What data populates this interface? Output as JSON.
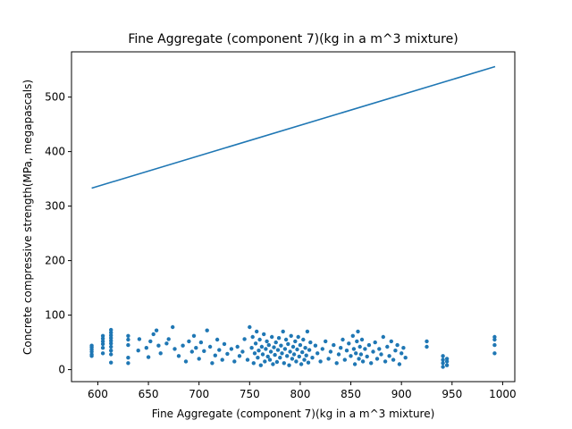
{
  "chart_data": {
    "type": "scatter",
    "title": "Fine Aggregate (component 7)(kg in a m^3 mixture)",
    "xlabel": "Fine Aggregate (component 7)(kg in a m^3 mixture)",
    "ylabel": "Concrete compressive strength(MPa, megapascals)",
    "xlim": [
      574,
      1012
    ],
    "ylim": [
      -22,
      583
    ],
    "xticks": [
      600,
      650,
      700,
      750,
      800,
      850,
      900,
      950,
      1000
    ],
    "yticks": [
      0,
      100,
      200,
      300,
      400,
      500
    ],
    "grid": false,
    "legend": "none",
    "color": "#1f77b4",
    "fit_line": {
      "x": [
        594,
        992.6
      ],
      "y": [
        333,
        556
      ]
    },
    "points": [
      [
        594,
        28
      ],
      [
        594,
        33
      ],
      [
        594,
        37
      ],
      [
        594,
        41
      ],
      [
        594,
        44
      ],
      [
        594,
        25
      ],
      [
        605,
        30
      ],
      [
        605,
        40
      ],
      [
        605,
        47
      ],
      [
        605,
        52
      ],
      [
        605,
        57
      ],
      [
        605,
        62
      ],
      [
        613,
        13
      ],
      [
        613,
        28
      ],
      [
        613,
        35
      ],
      [
        613,
        42
      ],
      [
        613,
        48
      ],
      [
        613,
        53
      ],
      [
        613,
        58
      ],
      [
        613,
        63
      ],
      [
        613,
        68
      ],
      [
        613,
        73
      ],
      [
        630,
        12
      ],
      [
        630,
        22
      ],
      [
        630,
        45
      ],
      [
        630,
        55
      ],
      [
        630,
        62
      ],
      [
        640,
        35
      ],
      [
        641,
        56
      ],
      [
        648,
        40
      ],
      [
        650,
        23
      ],
      [
        652,
        52
      ],
      [
        655,
        65
      ],
      [
        658,
        72
      ],
      [
        660,
        44
      ],
      [
        662,
        30
      ],
      [
        668,
        48
      ],
      [
        670,
        56
      ],
      [
        674,
        78
      ],
      [
        676,
        38
      ],
      [
        680,
        25
      ],
      [
        684,
        44
      ],
      [
        687,
        15
      ],
      [
        690,
        52
      ],
      [
        693,
        33
      ],
      [
        695,
        62
      ],
      [
        697,
        40
      ],
      [
        700,
        20
      ],
      [
        702,
        50
      ],
      [
        705,
        34
      ],
      [
        708,
        72
      ],
      [
        711,
        42
      ],
      [
        713,
        12
      ],
      [
        716,
        26
      ],
      [
        718,
        55
      ],
      [
        720,
        36
      ],
      [
        723,
        18
      ],
      [
        725,
        47
      ],
      [
        728,
        29
      ],
      [
        732,
        38
      ],
      [
        735,
        15
      ],
      [
        738,
        42
      ],
      [
        740,
        25
      ],
      [
        743,
        33
      ],
      [
        745,
        56
      ],
      [
        748,
        18
      ],
      [
        750,
        78
      ],
      [
        752,
        40
      ],
      [
        753,
        60
      ],
      [
        754,
        12
      ],
      [
        755,
        30
      ],
      [
        756,
        48
      ],
      [
        757,
        70
      ],
      [
        758,
        22
      ],
      [
        759,
        35
      ],
      [
        760,
        55
      ],
      [
        761,
        8
      ],
      [
        762,
        42
      ],
      [
        763,
        28
      ],
      [
        764,
        65
      ],
      [
        765,
        15
      ],
      [
        766,
        38
      ],
      [
        767,
        52
      ],
      [
        768,
        24
      ],
      [
        769,
        45
      ],
      [
        770,
        18
      ],
      [
        771,
        33
      ],
      [
        772,
        60
      ],
      [
        773,
        10
      ],
      [
        774,
        41
      ],
      [
        775,
        27
      ],
      [
        776,
        50
      ],
      [
        777,
        14
      ],
      [
        778,
        36
      ],
      [
        779,
        58
      ],
      [
        780,
        22
      ],
      [
        781,
        44
      ],
      [
        782,
        30
      ],
      [
        783,
        70
      ],
      [
        784,
        12
      ],
      [
        785,
        38
      ],
      [
        786,
        55
      ],
      [
        787,
        25
      ],
      [
        788,
        47
      ],
      [
        789,
        8
      ],
      [
        790,
        33
      ],
      [
        791,
        62
      ],
      [
        792,
        20
      ],
      [
        793,
        42
      ],
      [
        794,
        28
      ],
      [
        795,
        52
      ],
      [
        796,
        15
      ],
      [
        797,
        37
      ],
      [
        798,
        60
      ],
      [
        799,
        24
      ],
      [
        800,
        45
      ],
      [
        801,
        10
      ],
      [
        802,
        32
      ],
      [
        803,
        55
      ],
      [
        804,
        18
      ],
      [
        805,
        40
      ],
      [
        806,
        26
      ],
      [
        807,
        70
      ],
      [
        808,
        13
      ],
      [
        809,
        36
      ],
      [
        810,
        50
      ],
      [
        812,
        22
      ],
      [
        815,
        44
      ],
      [
        817,
        30
      ],
      [
        820,
        15
      ],
      [
        822,
        38
      ],
      [
        825,
        52
      ],
      [
        828,
        20
      ],
      [
        830,
        33
      ],
      [
        833,
        45
      ],
      [
        836,
        12
      ],
      [
        838,
        28
      ],
      [
        840,
        40
      ],
      [
        842,
        55
      ],
      [
        844,
        18
      ],
      [
        846,
        35
      ],
      [
        848,
        48
      ],
      [
        850,
        25
      ],
      [
        852,
        62
      ],
      [
        853,
        38
      ],
      [
        854,
        10
      ],
      [
        855,
        30
      ],
      [
        856,
        52
      ],
      [
        857,
        70
      ],
      [
        858,
        20
      ],
      [
        859,
        42
      ],
      [
        860,
        28
      ],
      [
        861,
        55
      ],
      [
        862,
        15
      ],
      [
        864,
        38
      ],
      [
        866,
        24
      ],
      [
        868,
        45
      ],
      [
        870,
        12
      ],
      [
        872,
        33
      ],
      [
        874,
        50
      ],
      [
        876,
        20
      ],
      [
        878,
        38
      ],
      [
        880,
        28
      ],
      [
        882,
        60
      ],
      [
        884,
        15
      ],
      [
        886,
        42
      ],
      [
        888,
        25
      ],
      [
        890,
        52
      ],
      [
        892,
        18
      ],
      [
        894,
        35
      ],
      [
        896,
        45
      ],
      [
        898,
        10
      ],
      [
        900,
        30
      ],
      [
        902,
        40
      ],
      [
        904,
        22
      ],
      [
        925,
        42
      ],
      [
        925,
        52
      ],
      [
        941,
        5
      ],
      [
        941,
        12
      ],
      [
        941,
        18
      ],
      [
        941,
        25
      ],
      [
        945,
        8
      ],
      [
        945,
        15
      ],
      [
        945,
        20
      ],
      [
        992,
        30
      ],
      [
        992,
        45
      ],
      [
        992,
        55
      ],
      [
        992,
        60
      ]
    ]
  }
}
